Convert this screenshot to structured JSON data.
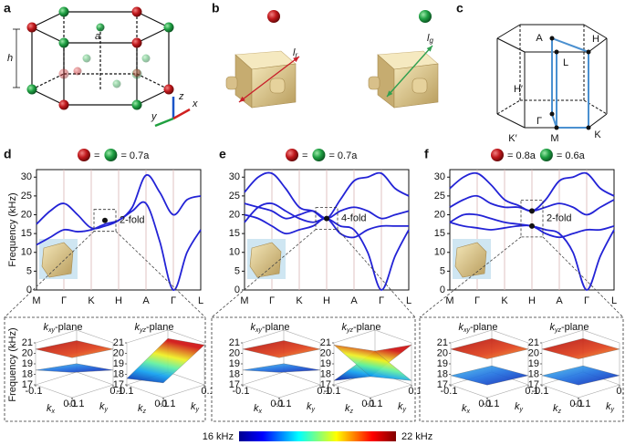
{
  "panels": {
    "a": {
      "label": "a",
      "lattice_label": "a",
      "height_label": "h",
      "axes": {
        "z": "z",
        "y": "y",
        "x": "x"
      }
    },
    "b": {
      "label": "b",
      "lengths": [
        {
          "symbol": "l",
          "subscript": "r"
        },
        {
          "symbol": "l",
          "subscript": "g"
        }
      ]
    },
    "c": {
      "label": "c",
      "points": [
        "A",
        "H",
        "H′",
        "L",
        "Γ",
        "K′",
        "M",
        "K"
      ]
    }
  },
  "chart_data": [
    {
      "type": "line",
      "panel_label": "d",
      "sphere_labels": [
        "=",
        "= 0.7a"
      ],
      "ylabel": "Frequency (kHz)",
      "categories": [
        "M",
        null,
        "Γ",
        null,
        "K",
        null,
        "H",
        null,
        "A",
        null,
        "Γ",
        null,
        "L"
      ],
      "ylim": [
        0,
        32
      ],
      "yticks": [
        0,
        5,
        10,
        15,
        20,
        25,
        30
      ],
      "series": [
        {
          "color": "#2323d6",
          "values": [
            12,
            14,
            16,
            15.5,
            16,
            17.5,
            18.5,
            21,
            23,
            13,
            0,
            10,
            16
          ]
        },
        {
          "color": "#2323d6",
          "values": [
            17.5,
            21,
            23,
            20,
            16.5,
            17,
            18.5,
            22,
            30.5,
            26,
            20,
            24,
            25
          ]
        }
      ],
      "degeneracy": {
        "label": "2-fold",
        "points": [
          {
            "category_index": 5,
            "value": 18.5
          }
        ]
      }
    },
    {
      "type": "line",
      "panel_label": "e",
      "sphere_labels": [
        "=",
        "= 0.7a"
      ],
      "categories": [
        "M",
        null,
        "Γ",
        null,
        "K",
        null,
        "H",
        null,
        "A",
        null,
        "Γ",
        null,
        "L"
      ],
      "ylim": [
        0,
        32
      ],
      "yticks": [
        0,
        5,
        10,
        15,
        20,
        25,
        30
      ],
      "series": [
        {
          "color": "#2323d6",
          "values": [
            26,
            30,
            31,
            27,
            22,
            21,
            19,
            24,
            29,
            30,
            31,
            27,
            25
          ]
        },
        {
          "color": "#2323d6",
          "values": [
            23,
            22,
            21,
            19,
            20,
            21,
            19,
            21,
            22,
            21,
            19,
            20,
            21
          ]
        },
        {
          "color": "#2323d6",
          "values": [
            18,
            22,
            23,
            21,
            19,
            18,
            19,
            17,
            16,
            10,
            0,
            9,
            16
          ]
        },
        {
          "color": "#2323d6",
          "values": [
            20,
            19,
            17,
            15,
            16,
            17,
            19,
            15,
            14,
            16,
            17,
            17,
            17
          ]
        }
      ],
      "degeneracy": {
        "label": "4-fold",
        "points": [
          {
            "category_index": 6,
            "value": 19
          }
        ]
      }
    },
    {
      "type": "line",
      "panel_label": "f",
      "sphere_labels": [
        "= 0.8a",
        "= 0.6a"
      ],
      "categories": [
        "M",
        null,
        "Γ",
        null,
        "K",
        null,
        "H",
        null,
        "A",
        null,
        "Γ",
        null,
        "L"
      ],
      "ylim": [
        0,
        32
      ],
      "yticks": [
        0,
        5,
        10,
        15,
        20,
        25,
        30
      ],
      "series": [
        {
          "color": "#2323d6",
          "values": [
            27,
            30,
            31,
            28,
            24,
            22.5,
            21,
            24,
            29,
            30,
            31,
            27,
            25
          ]
        },
        {
          "color": "#2323d6",
          "values": [
            22,
            24,
            25,
            23,
            22,
            22,
            21,
            22,
            23,
            22,
            20,
            22,
            24
          ]
        },
        {
          "color": "#2323d6",
          "values": [
            18,
            20,
            20,
            19,
            18,
            17.5,
            17,
            16,
            15,
            10,
            0,
            9,
            16
          ]
        },
        {
          "color": "#2323d6",
          "values": [
            18,
            17,
            16.5,
            16,
            16.5,
            17,
            17,
            15,
            14,
            15,
            16,
            16,
            17
          ]
        }
      ],
      "degeneracy": {
        "label": "2-fold",
        "points": [
          {
            "category_index": 6,
            "value": 21
          },
          {
            "category_index": 6,
            "value": 17
          }
        ]
      }
    }
  ],
  "insets": [
    {
      "zlabel": "Frequency (kHz)",
      "zlim": [
        17,
        21
      ],
      "zticks": [
        17,
        18,
        19,
        20,
        21
      ],
      "kticks": [
        -0.1,
        0.1
      ],
      "planes": [
        {
          "symbol": "k",
          "subscript": "xy",
          "suffix": "-plane",
          "axis_labels": [
            {
              "symbol": "k",
              "subscript": "x"
            },
            {
              "symbol": "k",
              "subscript": "y"
            }
          ]
        },
        {
          "symbol": "k",
          "subscript": "yz",
          "suffix": "-plane",
          "axis_labels": [
            {
              "symbol": "k",
              "subscript": "z"
            },
            {
              "symbol": "k",
              "subscript": "y"
            }
          ]
        }
      ]
    },
    {
      "zlim": [
        17,
        21
      ],
      "zticks": [
        17,
        18,
        19,
        20,
        21
      ],
      "kticks": [
        -0.1,
        0.1
      ],
      "planes": [
        {
          "symbol": "k",
          "subscript": "xy",
          "suffix": "-plane",
          "axis_labels": [
            {
              "symbol": "k",
              "subscript": "x"
            },
            {
              "symbol": "k",
              "subscript": "y"
            }
          ]
        },
        {
          "symbol": "k",
          "subscript": "yz",
          "suffix": "-plane",
          "axis_labels": [
            {
              "symbol": "k",
              "subscript": "z"
            },
            {
              "symbol": "k",
              "subscript": "y"
            }
          ]
        }
      ]
    },
    {
      "zlim": [
        17,
        21
      ],
      "zticks": [
        17,
        18,
        19,
        20,
        21
      ],
      "kticks": [
        -0.1,
        0.1
      ],
      "planes": [
        {
          "symbol": "k",
          "subscript": "xy",
          "suffix": "-plane",
          "axis_labels": [
            {
              "symbol": "k",
              "subscript": "x"
            },
            {
              "symbol": "k",
              "subscript": "y"
            }
          ]
        },
        {
          "symbol": "k",
          "subscript": "yz",
          "suffix": "-plane",
          "axis_labels": [
            {
              "symbol": "k",
              "subscript": "z"
            },
            {
              "symbol": "k",
              "subscript": "y"
            }
          ]
        }
      ]
    }
  ],
  "colorbar": {
    "min_label": "16 kHz",
    "max_label": "22 kHz"
  }
}
